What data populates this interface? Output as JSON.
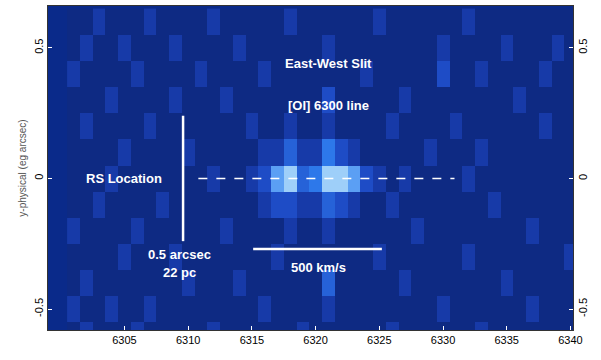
{
  "chart_data": {
    "type": "heatmap",
    "y_label": "y-physical (eg arcsec)",
    "x": [
      6301,
      6302,
      6303,
      6304,
      6305,
      6306,
      6307,
      6308,
      6309,
      6310,
      6311,
      6312,
      6313,
      6314,
      6315,
      6316,
      6317,
      6318,
      6319,
      6320,
      6321,
      6322,
      6323,
      6324,
      6325,
      6326,
      6327,
      6328,
      6329,
      6330,
      6331,
      6332,
      6333,
      6334,
      6335,
      6336,
      6337,
      6338,
      6339,
      6340
    ],
    "y": [
      0.6,
      0.5,
      0.4,
      0.3,
      0.2,
      0.1,
      0.0,
      -0.1,
      -0.2,
      -0.3,
      -0.4,
      -0.5,
      -0.6
    ],
    "z": [
      [
        3,
        3,
        4,
        3,
        3,
        3,
        4,
        3,
        3,
        3,
        3,
        4,
        3,
        3,
        3,
        3,
        3,
        4,
        3,
        3,
        3,
        3,
        3,
        3,
        4,
        3,
        3,
        3,
        3,
        3,
        3,
        4,
        3,
        3,
        3,
        3,
        3,
        3,
        3,
        3
      ],
      [
        3,
        4,
        3,
        3,
        4,
        3,
        3,
        3,
        4,
        3,
        3,
        3,
        3,
        4,
        3,
        3,
        3,
        3,
        3,
        3,
        4,
        3,
        3,
        3,
        3,
        3,
        3,
        3,
        3,
        4,
        3,
        3,
        3,
        3,
        4,
        3,
        3,
        3,
        4,
        3
      ],
      [
        4,
        3,
        3,
        3,
        3,
        4,
        3,
        3,
        3,
        3,
        4,
        3,
        3,
        3,
        3,
        4,
        3,
        3,
        3,
        3,
        3,
        3,
        3,
        4,
        3,
        3,
        3,
        3,
        3,
        5,
        3,
        3,
        4,
        3,
        3,
        3,
        3,
        4,
        3,
        3
      ],
      [
        3,
        3,
        3,
        4,
        3,
        3,
        3,
        3,
        4,
        3,
        3,
        3,
        4,
        3,
        3,
        3,
        3,
        3,
        3,
        3,
        5,
        3,
        3,
        3,
        3,
        3,
        4,
        3,
        3,
        3,
        3,
        3,
        3,
        3,
        3,
        4,
        3,
        3,
        3,
        3
      ],
      [
        3,
        4,
        3,
        3,
        3,
        3,
        4,
        3,
        3,
        3,
        3,
        3,
        3,
        3,
        4,
        3,
        3,
        4,
        3,
        3,
        4,
        3,
        3,
        3,
        3,
        4,
        3,
        3,
        3,
        3,
        4,
        3,
        3,
        3,
        3,
        3,
        3,
        4,
        3,
        3
      ],
      [
        3,
        3,
        3,
        3,
        4,
        3,
        3,
        3,
        3,
        4,
        3,
        3,
        3,
        3,
        3,
        4,
        4,
        6,
        4,
        4,
        7,
        5,
        4,
        3,
        3,
        3,
        3,
        3,
        4,
        3,
        3,
        3,
        4,
        3,
        3,
        3,
        3,
        3,
        3,
        3
      ],
      [
        3,
        3,
        3,
        4,
        3,
        3,
        3,
        3,
        3,
        3,
        3,
        4,
        3,
        3,
        4,
        5,
        8,
        9,
        6,
        7,
        9,
        9,
        8,
        5,
        4,
        3,
        4,
        3,
        3,
        3,
        3,
        4,
        3,
        3,
        3,
        3,
        3,
        3,
        3,
        3
      ],
      [
        3,
        3,
        4,
        3,
        3,
        3,
        3,
        4,
        3,
        3,
        3,
        3,
        3,
        3,
        3,
        4,
        5,
        5,
        4,
        4,
        6,
        5,
        4,
        3,
        3,
        4,
        3,
        3,
        3,
        3,
        3,
        3,
        3,
        4,
        3,
        3,
        3,
        3,
        3,
        3
      ],
      [
        4,
        3,
        3,
        3,
        3,
        4,
        3,
        3,
        3,
        3,
        3,
        3,
        4,
        3,
        3,
        3,
        3,
        4,
        3,
        3,
        4,
        3,
        3,
        3,
        3,
        3,
        3,
        4,
        3,
        3,
        3,
        3,
        3,
        3,
        3,
        3,
        4,
        3,
        3,
        3
      ],
      [
        3,
        3,
        3,
        3,
        4,
        3,
        3,
        3,
        4,
        3,
        3,
        3,
        3,
        3,
        3,
        3,
        4,
        3,
        3,
        3,
        3,
        3,
        3,
        3,
        4,
        3,
        3,
        3,
        3,
        3,
        3,
        4,
        3,
        3,
        3,
        3,
        3,
        3,
        3,
        4
      ],
      [
        3,
        4,
        3,
        3,
        3,
        3,
        3,
        3,
        3,
        4,
        3,
        3,
        3,
        4,
        3,
        3,
        3,
        3,
        3,
        3,
        6,
        3,
        3,
        3,
        3,
        3,
        4,
        3,
        3,
        3,
        3,
        3,
        3,
        3,
        4,
        3,
        3,
        3,
        3,
        3
      ],
      [
        4,
        3,
        3,
        4,
        3,
        3,
        4,
        3,
        3,
        3,
        3,
        3,
        3,
        3,
        3,
        4,
        3,
        3,
        3,
        3,
        4,
        3,
        3,
        3,
        3,
        3,
        3,
        3,
        3,
        4,
        3,
        3,
        3,
        3,
        3,
        3,
        4,
        3,
        3,
        3
      ],
      [
        3,
        4,
        3,
        3,
        3,
        4,
        3,
        3,
        3,
        3,
        3,
        4,
        3,
        3,
        3,
        3,
        3,
        3,
        4,
        3,
        3,
        3,
        3,
        3,
        3,
        4,
        3,
        3,
        3,
        3,
        3,
        3,
        4,
        3,
        3,
        3,
        3,
        3,
        3,
        3
      ]
    ],
    "zlim": [
      2,
      10
    ],
    "colors": [
      "#061a5e",
      "#1c45c0",
      "#2f7ff0",
      "#e0ffff"
    ],
    "xlim": [
      6299,
      6340.2
    ],
    "xticks": [
      6305,
      6310,
      6315,
      6320,
      6325,
      6330,
      6335,
      6340
    ],
    "ylim": [
      -0.58,
      0.66
    ],
    "yticks": [
      -0.5,
      0,
      0.5
    ],
    "lines": [
      {
        "x": [
          6309.6,
          6309.6
        ],
        "y": [
          0.24,
          -0.24
        ],
        "line_style": "solid"
      },
      {
        "x": [
          6315.1,
          6325.2
        ],
        "y": [
          -0.27,
          -0.27
        ],
        "line_style": "solid"
      },
      {
        "x": [
          6310.8,
          6330.9
        ],
        "y": [
          0,
          0
        ],
        "line_style": "dashed"
      }
    ],
    "annotations": [
      {
        "text": "East-West Slit",
        "x": 6321,
        "y": 0.44
      },
      {
        "text": "[OI] 6300 line",
        "x": 6321,
        "y": 0.28
      },
      {
        "text": "RS Location",
        "x": 6305,
        "y": 0
      },
      {
        "text": "0.5 arcsec",
        "x": 6309.3,
        "y": -0.29
      },
      {
        "text": "22 pc",
        "x": 6309.3,
        "y": -0.36
      },
      {
        "text": "500 km/s",
        "x": 6320.2,
        "y": -0.34
      }
    ]
  }
}
